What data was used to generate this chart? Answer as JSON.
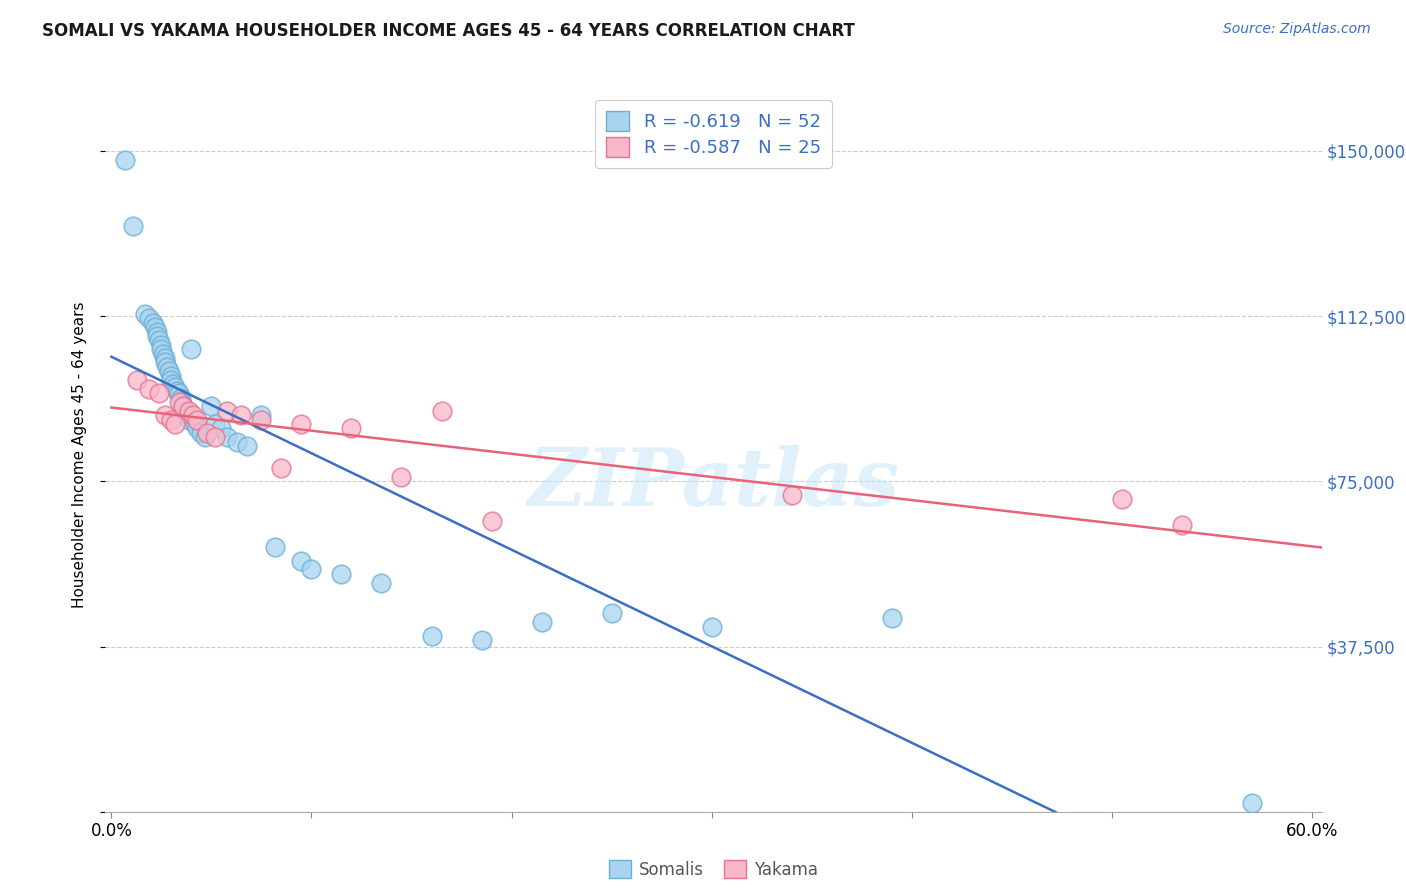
{
  "title": "SOMALI VS YAKAMA HOUSEHOLDER INCOME AGES 45 - 64 YEARS CORRELATION CHART",
  "source": "Source: ZipAtlas.com",
  "ylabel": "Householder Income Ages 45 - 64 years",
  "xlim": [
    -0.003,
    0.605
  ],
  "ylim": [
    0,
    162000
  ],
  "ytick_vals": [
    0,
    37500,
    75000,
    112500,
    150000
  ],
  "ytick_labels": [
    "",
    "$37,500",
    "$75,000",
    "$112,500",
    "$150,000"
  ],
  "xtick_vals": [
    0.0,
    0.1,
    0.2,
    0.3,
    0.4,
    0.5,
    0.6
  ],
  "xtick_labels": [
    "0.0%",
    "",
    "",
    "",
    "",
    "",
    "60.0%"
  ],
  "somali_fill": "#A8D4F0",
  "somali_edge": "#6BAED6",
  "yakama_fill": "#F9B8C9",
  "yakama_edge": "#E87090",
  "somali_line": "#3A6FC4",
  "yakama_line": "#E8637A",
  "somali_R": -0.619,
  "somali_N": 52,
  "yakama_R": -0.587,
  "yakama_N": 25,
  "watermark": "ZIPatlas",
  "legend_label_somali": "Somalis",
  "legend_label_yakama": "Yakama",
  "somali_x": [
    0.007,
    0.011,
    0.017,
    0.019,
    0.021,
    0.022,
    0.023,
    0.023,
    0.024,
    0.025,
    0.025,
    0.026,
    0.027,
    0.027,
    0.028,
    0.029,
    0.03,
    0.03,
    0.031,
    0.032,
    0.033,
    0.034,
    0.035,
    0.035,
    0.036,
    0.037,
    0.038,
    0.039,
    0.04,
    0.042,
    0.043,
    0.045,
    0.047,
    0.05,
    0.052,
    0.055,
    0.058,
    0.063,
    0.068,
    0.075,
    0.082,
    0.095,
    0.1,
    0.115,
    0.135,
    0.16,
    0.185,
    0.215,
    0.25,
    0.3,
    0.39,
    0.57
  ],
  "somali_y": [
    148000,
    133000,
    113000,
    112000,
    111000,
    110000,
    109000,
    108000,
    107000,
    106000,
    105000,
    104000,
    103000,
    102000,
    101000,
    100000,
    99000,
    98000,
    97000,
    96500,
    95500,
    95000,
    94000,
    93000,
    92000,
    91000,
    90000,
    89000,
    105000,
    88000,
    87000,
    86000,
    85000,
    92000,
    88000,
    87000,
    85000,
    84000,
    83000,
    90000,
    60000,
    57000,
    55000,
    54000,
    52000,
    40000,
    39000,
    43000,
    45000,
    42000,
    44000,
    2000
  ],
  "yakama_x": [
    0.013,
    0.019,
    0.024,
    0.027,
    0.03,
    0.032,
    0.034,
    0.036,
    0.039,
    0.041,
    0.043,
    0.048,
    0.052,
    0.058,
    0.065,
    0.075,
    0.085,
    0.095,
    0.12,
    0.145,
    0.165,
    0.19,
    0.34,
    0.505,
    0.535
  ],
  "yakama_y": [
    98000,
    96000,
    95000,
    90000,
    89000,
    88000,
    93000,
    92000,
    91000,
    90000,
    89000,
    86000,
    85000,
    91000,
    90000,
    89000,
    78000,
    88000,
    87000,
    76000,
    91000,
    66000,
    72000,
    71000,
    65000
  ]
}
